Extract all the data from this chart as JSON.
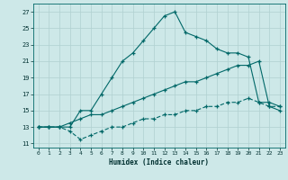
{
  "xlabel": "Humidex (Indice chaleur)",
  "background_color": "#cde8e8",
  "grid_color": "#b0d0d0",
  "line_color": "#006868",
  "xlim": [
    -0.5,
    23.5
  ],
  "ylim": [
    10.5,
    28.0
  ],
  "xticks": [
    0,
    1,
    2,
    3,
    4,
    5,
    6,
    7,
    8,
    9,
    10,
    11,
    12,
    13,
    14,
    15,
    16,
    17,
    18,
    19,
    20,
    21,
    22,
    23
  ],
  "yticks": [
    11,
    13,
    15,
    17,
    19,
    21,
    23,
    25,
    27
  ],
  "line1_x": [
    0,
    1,
    2,
    3,
    4,
    5,
    6,
    7,
    8,
    9,
    10,
    11,
    12,
    13,
    14,
    15,
    16,
    17,
    18,
    19,
    20,
    21,
    22,
    23
  ],
  "line1_y": [
    13,
    13,
    13,
    13,
    15,
    15,
    17,
    19,
    21,
    22,
    23.5,
    25,
    26.5,
    27.0,
    24.5,
    24.0,
    23.5,
    22.5,
    22.0,
    22.0,
    21.5,
    16.0,
    16.0,
    15.5
  ],
  "line2_x": [
    0,
    1,
    2,
    3,
    4,
    5,
    6,
    7,
    8,
    9,
    10,
    11,
    12,
    13,
    14,
    15,
    16,
    17,
    18,
    19,
    20,
    21,
    22,
    23
  ],
  "line2_y": [
    13,
    13,
    13,
    13.5,
    14,
    14.5,
    14.5,
    15,
    15.5,
    16.0,
    16.5,
    17.0,
    17.5,
    18.0,
    18.5,
    18.5,
    19.0,
    19.5,
    20.0,
    20.5,
    20.5,
    21.0,
    15.5,
    15.0
  ],
  "line3_x": [
    0,
    1,
    2,
    3,
    4,
    5,
    6,
    7,
    8,
    9,
    10,
    11,
    12,
    13,
    14,
    15,
    16,
    17,
    18,
    19,
    20,
    21,
    22,
    23
  ],
  "line3_y": [
    13,
    13,
    13,
    12.5,
    11.5,
    12.0,
    12.5,
    13.0,
    13.0,
    13.5,
    14.0,
    14.0,
    14.5,
    14.5,
    15.0,
    15.0,
    15.5,
    15.5,
    16.0,
    16.0,
    16.5,
    16.0,
    15.5,
    15.5
  ]
}
